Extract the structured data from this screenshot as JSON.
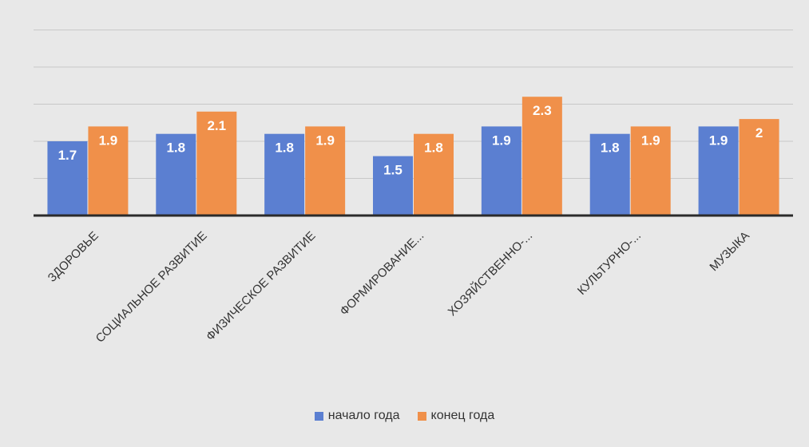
{
  "chart_data": {
    "type": "bar",
    "categories": [
      "ЗДОРОВЬЕ",
      "СОЦИАЛЬНОЕ РАЗВИТИЕ",
      "ФИЗИЧЕСКОЕ РАЗВИТИЕ",
      "ФОРМИРОВАНИЕ...",
      "ХОЗЯЙСТВЕННО-...",
      "КУЛЬТУРНО-...",
      "МУЗЫКА"
    ],
    "series": [
      {
        "name": "начало года",
        "color": "#5b7fd1",
        "values": [
          1.7,
          1.8,
          1.8,
          1.5,
          1.9,
          1.8,
          1.9
        ]
      },
      {
        "name": "конец года",
        "color": "#f0904a",
        "values": [
          1.9,
          2.1,
          1.9,
          1.8,
          2.3,
          1.9,
          2
        ]
      }
    ],
    "title": "",
    "xlabel": "",
    "ylabel": "",
    "grid": true,
    "legend_position": "bottom",
    "background_color": "#e8e8e8",
    "gridline_color": "#c8c8c8",
    "axis_color": "#2b2b2b"
  }
}
